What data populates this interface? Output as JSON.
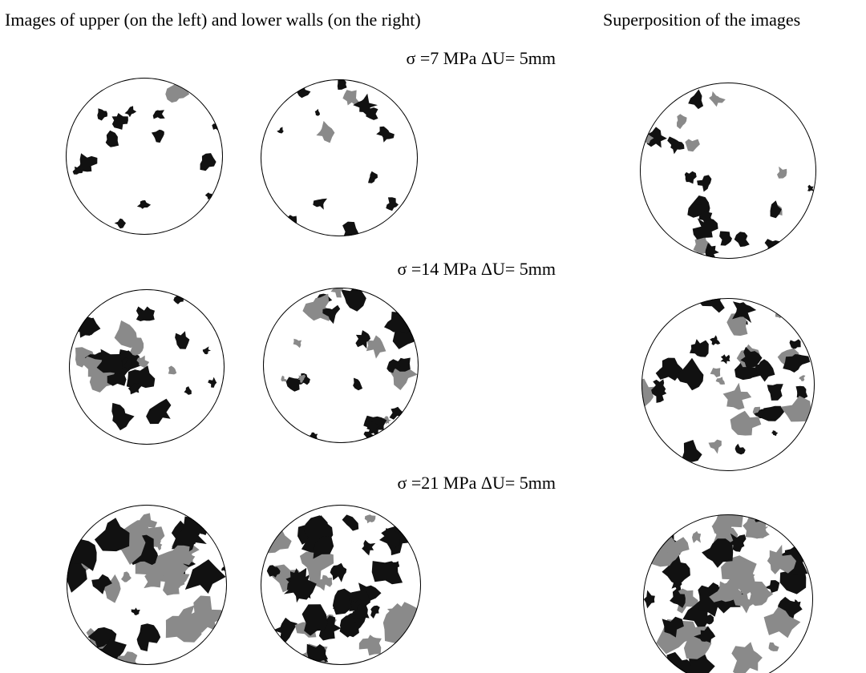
{
  "header": {
    "left_title": "Images of upper (on the left) and lower walls (on the right)",
    "right_title": "Superposition of the images"
  },
  "rows": [
    {
      "label": "σ =7 MPa ΔU= 5mm"
    },
    {
      "label": "σ =14 MPa ΔU= 5mm"
    },
    {
      "label": "σ =21 MPa ΔU= 5mm"
    }
  ]
}
